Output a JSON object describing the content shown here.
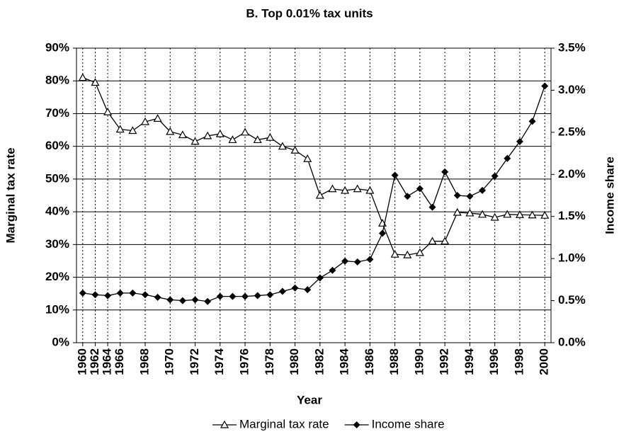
{
  "chart_data": {
    "type": "line",
    "title": "B. Top 0.01% tax units",
    "x_label": "Year",
    "y_label": "Marginal tax rate",
    "y2_label": "Income share",
    "categories": [
      "1960",
      "1962",
      "1964",
      "1966",
      null,
      "1968",
      null,
      "1970",
      null,
      "1972",
      null,
      "1974",
      null,
      "1976",
      null,
      "1978",
      null,
      "1980",
      null,
      "1982",
      null,
      "1984",
      null,
      "1986",
      null,
      "1988",
      null,
      "1990",
      null,
      "1992",
      null,
      "1994",
      null,
      "1996",
      null,
      "1998",
      null,
      "2000"
    ],
    "series": [
      {
        "name": "Marginal tax rate",
        "color": "#000000",
        "marker": "triangle-open",
        "values": [
          81,
          79.5,
          70.5,
          65.2,
          64.8,
          67.5,
          68.5,
          64.5,
          63.5,
          61.5,
          63.2,
          63.8,
          62,
          64.3,
          62,
          62.7,
          60,
          58.8,
          56.2,
          45,
          47,
          46.5,
          47,
          46.5,
          36.5,
          27,
          26.8,
          27.5,
          31,
          31,
          39.8,
          39.6,
          39.2,
          38.3,
          39.2,
          39.1,
          39,
          38.9
        ]
      },
      {
        "name": "Income share",
        "color": "#000000",
        "marker": "diamond",
        "axis": "y2",
        "values": [
          0.59,
          0.57,
          0.56,
          0.59,
          0.59,
          0.57,
          0.54,
          0.51,
          0.5,
          0.51,
          0.49,
          0.55,
          0.55,
          0.55,
          0.56,
          0.57,
          0.61,
          0.65,
          0.63,
          0.77,
          0.86,
          0.97,
          0.96,
          0.99,
          1.3,
          1.99,
          1.74,
          1.83,
          1.61,
          2.03,
          1.75,
          1.74,
          1.81,
          1.98,
          2.19,
          2.39,
          2.63,
          3.05
        ]
      }
    ],
    "ylim": [
      0,
      90
    ],
    "yticks": [
      {
        "value": 0,
        "label": "0%"
      },
      {
        "value": 10,
        "label": "10%"
      },
      {
        "value": 20,
        "label": "20%"
      },
      {
        "value": 30,
        "label": "30%"
      },
      {
        "value": 40,
        "label": "40%"
      },
      {
        "value": 50,
        "label": "50%"
      },
      {
        "value": 60,
        "label": "60%"
      },
      {
        "value": 70,
        "label": "70%"
      },
      {
        "value": 80,
        "label": "80%"
      },
      {
        "value": 90,
        "label": "90%"
      }
    ],
    "y2lim": [
      0,
      3.5
    ],
    "y2ticks": [
      {
        "value": 0,
        "label": "0.0%"
      },
      {
        "value": 0.5,
        "label": "0.5%"
      },
      {
        "value": 1,
        "label": "1.0%"
      },
      {
        "value": 1.5,
        "label": "1.5%"
      },
      {
        "value": 2,
        "label": "2.0%"
      },
      {
        "value": 2.5,
        "label": "2.5%"
      },
      {
        "value": 3,
        "label": "3.0%"
      },
      {
        "value": 3.5,
        "label": "3.5%"
      }
    ],
    "grid": true,
    "legend": "bottom"
  }
}
